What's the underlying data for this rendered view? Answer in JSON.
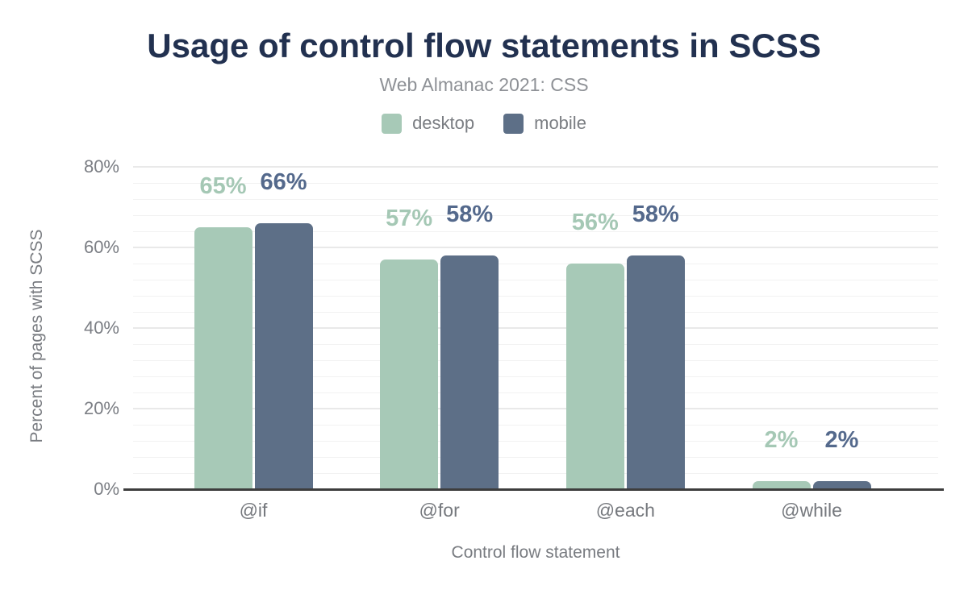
{
  "header": {
    "title": "Usage of control flow statements in SCSS",
    "subtitle": "Web Almanac 2021: CSS"
  },
  "colors": {
    "title": "#223150",
    "subtitle": "#8e9196",
    "axis_text": "#7b7e84",
    "axis_line": "#3d3d3d",
    "gridline_major": "#e9e9e9",
    "gridline_minor": "#f2f2f2",
    "desktop": "#a7c9b7",
    "mobile": "#5d6f87"
  },
  "chart_data": {
    "type": "bar",
    "title": "Usage of control flow statements in SCSS",
    "subtitle": "Web Almanac 2021: CSS",
    "categories": [
      "@if",
      "@for",
      "@each",
      "@while"
    ],
    "series": [
      {
        "name": "desktop",
        "color": "#a7c9b7",
        "label_color": "#a5c8b5",
        "values": [
          65,
          57,
          56,
          2
        ]
      },
      {
        "name": "mobile",
        "color": "#5d6f87",
        "label_color": "#54698c",
        "values": [
          66,
          58,
          58,
          2
        ]
      }
    ],
    "value_suffix": "%",
    "xlabel": "Control flow statement",
    "ylabel": "Percent of pages with SCSS",
    "ylim": [
      0,
      80
    ],
    "y_major_ticks": [
      0,
      20,
      40,
      60,
      80
    ],
    "y_minor_step": 4,
    "grid": true,
    "legend_position": "top"
  }
}
